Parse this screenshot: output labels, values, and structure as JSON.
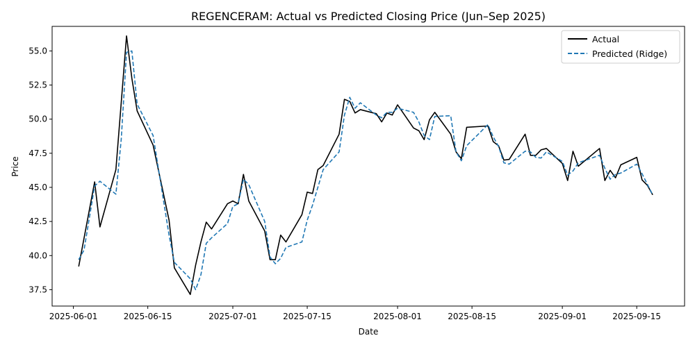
{
  "chart_data": {
    "type": "line",
    "title": "REGENCERAM: Actual vs Predicted Closing Price (Jun–Sep 2025)",
    "xlabel": "Date",
    "ylabel": "Price",
    "xlim": [
      "2025-05-28",
      "2025-09-24"
    ],
    "ylim": [
      36.3,
      56.8
    ],
    "x_ticks": [
      "2025-06-01",
      "2025-06-15",
      "2025-07-01",
      "2025-07-15",
      "2025-08-01",
      "2025-08-15",
      "2025-09-01",
      "2025-09-15"
    ],
    "y_ticks": [
      37.5,
      40.0,
      42.5,
      45.0,
      47.5,
      50.0,
      52.5,
      55.0
    ],
    "y_tick_labels": [
      "37.5",
      "40.0",
      "42.5",
      "45.0",
      "47.5",
      "50.0",
      "52.5",
      "55.0"
    ],
    "grid": false,
    "legend_position": "top-right",
    "series": [
      {
        "name": "Actual",
        "color": "#000000",
        "style": "solid",
        "points": [
          [
            "2025-06-02",
            39.2
          ],
          [
            "2025-06-05",
            45.4
          ],
          [
            "2025-06-06",
            42.1
          ],
          [
            "2025-06-09",
            46.3
          ],
          [
            "2025-06-11",
            56.1
          ],
          [
            "2025-06-12",
            53.0
          ],
          [
            "2025-06-13",
            50.6
          ],
          [
            "2025-06-16",
            48.1
          ],
          [
            "2025-06-19",
            42.6
          ],
          [
            "2025-06-20",
            39.1
          ],
          [
            "2025-06-23",
            37.15
          ],
          [
            "2025-06-24",
            39.3
          ],
          [
            "2025-06-25",
            41.0
          ],
          [
            "2025-06-26",
            42.45
          ],
          [
            "2025-06-27",
            41.95
          ],
          [
            "2025-06-30",
            43.8
          ],
          [
            "2025-07-01",
            44.0
          ],
          [
            "2025-07-02",
            43.8
          ],
          [
            "2025-07-03",
            45.95
          ],
          [
            "2025-07-04",
            44.0
          ],
          [
            "2025-07-07",
            41.8
          ],
          [
            "2025-07-08",
            39.7
          ],
          [
            "2025-07-09",
            39.7
          ],
          [
            "2025-07-10",
            41.5
          ],
          [
            "2025-07-11",
            41.0
          ],
          [
            "2025-07-14",
            43.0
          ],
          [
            "2025-07-15",
            44.65
          ],
          [
            "2025-07-16",
            44.55
          ],
          [
            "2025-07-17",
            46.3
          ],
          [
            "2025-07-18",
            46.6
          ],
          [
            "2025-07-21",
            48.9
          ],
          [
            "2025-07-22",
            51.45
          ],
          [
            "2025-07-23",
            51.3
          ],
          [
            "2025-07-24",
            50.45
          ],
          [
            "2025-07-25",
            50.7
          ],
          [
            "2025-07-28",
            50.4
          ],
          [
            "2025-07-29",
            49.8
          ],
          [
            "2025-07-30",
            50.45
          ],
          [
            "2025-07-31",
            50.3
          ],
          [
            "2025-08-01",
            51.05
          ],
          [
            "2025-08-04",
            49.35
          ],
          [
            "2025-08-05",
            49.15
          ],
          [
            "2025-08-06",
            48.5
          ],
          [
            "2025-08-07",
            49.95
          ],
          [
            "2025-08-08",
            50.5
          ],
          [
            "2025-08-11",
            48.9
          ],
          [
            "2025-08-12",
            47.6
          ],
          [
            "2025-08-13",
            47.1
          ],
          [
            "2025-08-14",
            49.4
          ],
          [
            "2025-08-18",
            49.5
          ],
          [
            "2025-08-19",
            48.35
          ],
          [
            "2025-08-20",
            48.05
          ],
          [
            "2025-08-21",
            47.0
          ],
          [
            "2025-08-22",
            47.05
          ],
          [
            "2025-08-25",
            48.9
          ],
          [
            "2025-08-26",
            47.35
          ],
          [
            "2025-08-27",
            47.35
          ],
          [
            "2025-08-28",
            47.75
          ],
          [
            "2025-08-29",
            47.85
          ],
          [
            "2025-09-01",
            46.75
          ],
          [
            "2025-09-02",
            45.5
          ],
          [
            "2025-09-03",
            47.65
          ],
          [
            "2025-09-04",
            46.55
          ],
          [
            "2025-09-08",
            47.85
          ],
          [
            "2025-09-09",
            45.5
          ],
          [
            "2025-09-10",
            46.25
          ],
          [
            "2025-09-11",
            45.7
          ],
          [
            "2025-09-12",
            46.65
          ],
          [
            "2025-09-15",
            47.2
          ],
          [
            "2025-09-16",
            45.55
          ],
          [
            "2025-09-17",
            45.15
          ],
          [
            "2025-09-18",
            44.45
          ]
        ]
      },
      {
        "name": "Predicted (Ridge)",
        "color": "#1f77b4",
        "style": "dashed",
        "points": [
          [
            "2025-06-02",
            39.7
          ],
          [
            "2025-06-03",
            40.4
          ],
          [
            "2025-06-05",
            45.1
          ],
          [
            "2025-06-06",
            45.45
          ],
          [
            "2025-06-09",
            44.5
          ],
          [
            "2025-06-10",
            48.5
          ],
          [
            "2025-06-11",
            54.9
          ],
          [
            "2025-06-12",
            55.0
          ],
          [
            "2025-06-13",
            51.1
          ],
          [
            "2025-06-16",
            48.8
          ],
          [
            "2025-06-19",
            41.5
          ],
          [
            "2025-06-20",
            39.5
          ],
          [
            "2025-06-23",
            38.3
          ],
          [
            "2025-06-24",
            37.5
          ],
          [
            "2025-06-25",
            38.6
          ],
          [
            "2025-06-26",
            40.9
          ],
          [
            "2025-06-27",
            41.3
          ],
          [
            "2025-06-30",
            42.35
          ],
          [
            "2025-07-01",
            43.6
          ],
          [
            "2025-07-02",
            43.8
          ],
          [
            "2025-07-03",
            45.6
          ],
          [
            "2025-07-04",
            45.2
          ],
          [
            "2025-07-07",
            42.5
          ],
          [
            "2025-07-08",
            39.9
          ],
          [
            "2025-07-09",
            39.4
          ],
          [
            "2025-07-10",
            39.8
          ],
          [
            "2025-07-11",
            40.6
          ],
          [
            "2025-07-14",
            41.0
          ],
          [
            "2025-07-15",
            42.6
          ],
          [
            "2025-07-16",
            43.7
          ],
          [
            "2025-07-18",
            46.3
          ],
          [
            "2025-07-21",
            47.6
          ],
          [
            "2025-07-22",
            50.3
          ],
          [
            "2025-07-23",
            51.6
          ],
          [
            "2025-07-24",
            50.8
          ],
          [
            "2025-07-25",
            51.2
          ],
          [
            "2025-07-28",
            50.3
          ],
          [
            "2025-07-29",
            50.1
          ],
          [
            "2025-07-30",
            50.5
          ],
          [
            "2025-07-31",
            50.5
          ],
          [
            "2025-08-01",
            50.8
          ],
          [
            "2025-08-04",
            50.5
          ],
          [
            "2025-08-05",
            49.8
          ],
          [
            "2025-08-06",
            48.8
          ],
          [
            "2025-08-07",
            48.5
          ],
          [
            "2025-08-08",
            50.2
          ],
          [
            "2025-08-11",
            50.25
          ],
          [
            "2025-08-12",
            47.6
          ],
          [
            "2025-08-13",
            46.95
          ],
          [
            "2025-08-14",
            48.05
          ],
          [
            "2025-08-18",
            49.6
          ],
          [
            "2025-08-19",
            48.7
          ],
          [
            "2025-08-20",
            48.0
          ],
          [
            "2025-08-21",
            46.8
          ],
          [
            "2025-08-22",
            46.7
          ],
          [
            "2025-08-25",
            47.65
          ],
          [
            "2025-08-26",
            47.6
          ],
          [
            "2025-08-27",
            47.2
          ],
          [
            "2025-08-28",
            47.15
          ],
          [
            "2025-08-29",
            47.6
          ],
          [
            "2025-09-01",
            46.9
          ],
          [
            "2025-09-02",
            45.9
          ],
          [
            "2025-09-03",
            46.2
          ],
          [
            "2025-09-04",
            46.8
          ],
          [
            "2025-09-08",
            47.35
          ],
          [
            "2025-09-09",
            46.4
          ],
          [
            "2025-09-10",
            45.6
          ],
          [
            "2025-09-11",
            45.95
          ],
          [
            "2025-09-12",
            46.05
          ],
          [
            "2025-09-15",
            46.7
          ],
          [
            "2025-09-16",
            46.0
          ],
          [
            "2025-09-18",
            44.45
          ]
        ]
      }
    ]
  }
}
